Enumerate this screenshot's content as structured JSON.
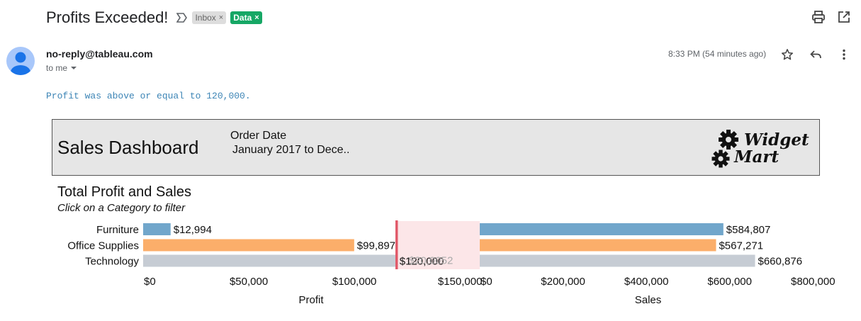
{
  "email": {
    "subject": "Profits Exceeded!",
    "labels": [
      {
        "text": "Inbox",
        "close": "×"
      },
      {
        "text": "Data",
        "close": "×"
      }
    ],
    "sender": "no-reply@tableau.com",
    "to": "to me",
    "time": "8:33 PM (54 minutes ago)",
    "body": "Profit was above or equal to 120,000.",
    "icons": [
      "print-icon",
      "open-in-new-icon",
      "star-icon",
      "reply-icon",
      "more-vert-icon",
      "important-icon"
    ]
  },
  "dashboard": {
    "title": "Sales Dashboard",
    "filter_label": "Order Date",
    "filter_value": "January 2017 to Dece..",
    "logo": "Widget Mart",
    "chart_title": "Total Profit and Sales",
    "chart_subtitle": "Click on a Category to filter"
  },
  "chart_data": [
    {
      "type": "bar",
      "orientation": "horizontal",
      "categories": [
        "Furniture",
        "Office Supplies",
        "Technology"
      ],
      "values": [
        12994,
        99897,
        120000
      ],
      "value_labels": [
        "$12,994",
        "$99,897",
        "$120,000"
      ],
      "overlapped_label": "$20,0052",
      "colors": [
        "#71a6cb",
        "#fbae6a",
        "#c6ccd4"
      ],
      "xlabel": "Profit",
      "xlim": [
        0,
        159000
      ],
      "ticks": [
        0,
        50000,
        100000,
        150000
      ],
      "tick_labels": [
        "$0",
        "$50,000",
        "$100,000",
        "$150,000"
      ],
      "reference_line": {
        "value": 120000,
        "color": "#e15a6a",
        "band_color": "#fce6e8"
      }
    },
    {
      "type": "bar",
      "orientation": "horizontal",
      "categories": [
        "Furniture",
        "Office Supplies",
        "Technology"
      ],
      "values": [
        584807,
        567271,
        660876
      ],
      "value_labels": [
        "$584,807",
        "$567,271",
        "$660,876"
      ],
      "colors": [
        "#71a6cb",
        "#fbae6a",
        "#c6ccd4"
      ],
      "xlabel": "Sales",
      "xlim": [
        0,
        808000
      ],
      "ticks": [
        0,
        200000,
        400000,
        600000,
        800000
      ],
      "tick_labels": [
        "$0",
        "$200,000",
        "$400,000",
        "$600,000",
        "$800,000"
      ]
    }
  ]
}
